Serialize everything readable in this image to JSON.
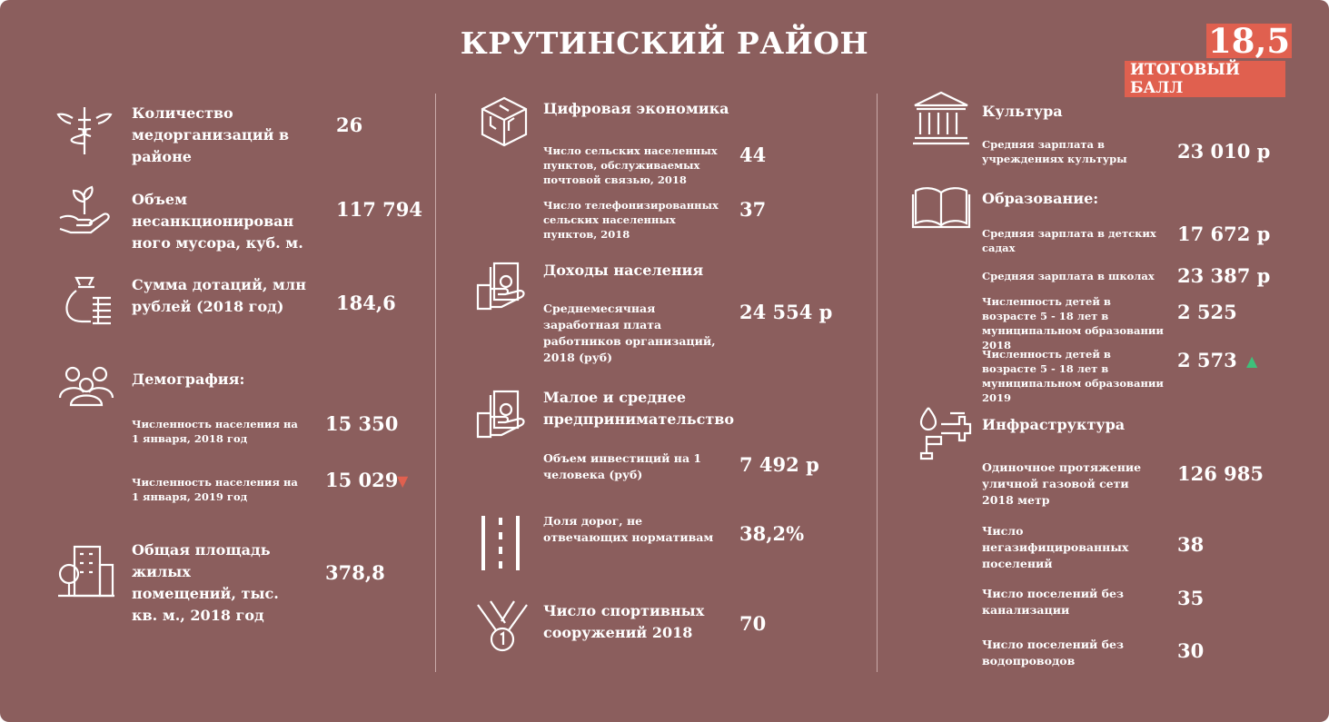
{
  "title": "КРУТИНСКИЙ РАЙОН",
  "score": {
    "value": "18,5",
    "label": "ИТОГОВЫЙ БАЛЛ",
    "color": "#e0604f"
  },
  "colors": {
    "background": "#8b5e5d",
    "accent": "#e0604f",
    "up": "#3ec07a"
  },
  "left": {
    "med": {
      "label": "Количество медорганизаций в районе",
      "value": "26",
      "icon": "caduceus-icon"
    },
    "waste": {
      "label": "Объем несанкционирован ного мусора, куб. м.",
      "value": "117 794",
      "icon": "hand-sprout-icon"
    },
    "subsidy": {
      "label": "Сумма дотаций, млн рублей (2018 год)",
      "value": "184,6",
      "icon": "money-bag-icon"
    },
    "demography": {
      "title": "Демография:",
      "icon": "people-icon",
      "items": [
        {
          "label": "Численность населения на 1 января, 2018 год",
          "value": "15 350"
        },
        {
          "label": "Численность населения на 1 января, 2019 год",
          "value": "15 029",
          "trend": "down"
        }
      ]
    },
    "housing": {
      "label": "Общая площадь жилых помещений, тыс. кв. м., 2018 год",
      "value": "378,8",
      "icon": "buildings-icon"
    }
  },
  "middle": {
    "digital": {
      "title": "Цифровая экономика",
      "icon": "chip-cube-icon",
      "items": [
        {
          "label": "Число сельских населенных пунктов, обслуживаемых почтовой связью, 2018",
          "value": "44"
        },
        {
          "label": "Число телефонизированных сельских населенных пунктов, 2018",
          "value": "37"
        }
      ]
    },
    "income": {
      "title": "Доходы населения",
      "icon": "hand-money-icon",
      "items": [
        {
          "label": "Среднемесячная заработная плата работников организаций, 2018 (руб)",
          "value": "24 554 р"
        }
      ]
    },
    "sme": {
      "title": "Малое и среднее предпринимательство",
      "icon": "hand-money-icon",
      "items": [
        {
          "label": "Объем инвестиций на 1 человека (руб)",
          "value": "7 492 р"
        }
      ]
    },
    "roads": {
      "label": "Доля дорог, не отвечающих нормативам",
      "value": "38,2%",
      "icon": "road-icon"
    },
    "sport": {
      "label": "Число спортивных сооружений 2018",
      "value": "70",
      "icon": "medal-icon"
    }
  },
  "right": {
    "culture": {
      "title": "Культура",
      "icon": "museum-icon",
      "items": [
        {
          "label": "Средняя зарплата в учреждениях культуры",
          "value": "23 010 р"
        }
      ]
    },
    "education": {
      "title": "Образование:",
      "icon": "book-icon",
      "items": [
        {
          "label": "Средняя зарплата в детских садах",
          "value": "17 672 р"
        },
        {
          "label": "Средняя зарплата в школах",
          "value": "23 387 р"
        },
        {
          "label": "Численность детей в возрасте 5 - 18 лет в муниципальном образовании 2018",
          "value": "2 525"
        },
        {
          "label": "Численность детей в возрасте 5 - 18 лет в муниципальном образовании 2019",
          "value": "2 573",
          "trend": "up"
        }
      ]
    },
    "infra": {
      "title": "Инфраструктура",
      "icon": "pipes-icon",
      "items": [
        {
          "label": "Одиночное протяжение уличной газовой сети 2018 метр",
          "value": "126 985"
        },
        {
          "label": "Число негазифицированных поселений",
          "value": "38"
        },
        {
          "label": "Число поселений без канализации",
          "value": "35"
        },
        {
          "label": "Число поселений без водопроводов",
          "value": "30"
        }
      ]
    }
  }
}
